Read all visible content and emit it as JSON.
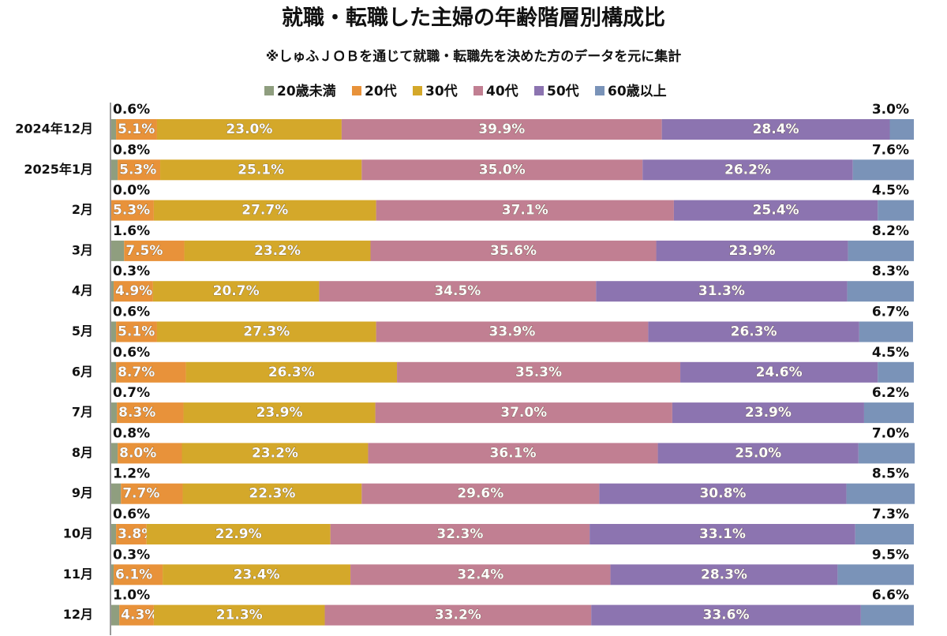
{
  "chart_data": {
    "type": "stacked_barh",
    "title": "就職・転職した主婦の年齢階層別構成比",
    "subtitle": "※しゅふＪＯＢを通じて就職・転職先を決めた方のデータを元に集計",
    "categories": [
      "2024年12月",
      "2025年1月",
      "2月",
      "3月",
      "4月",
      "5月",
      "6月",
      "7月",
      "8月",
      "9月",
      "10月",
      "11月",
      "12月"
    ],
    "xlim": [
      0,
      100
    ],
    "series": [
      {
        "name": "20歳未満",
        "color": "#8f9e7f",
        "values": [
          0.6,
          0.8,
          0.0,
          1.6,
          0.3,
          0.6,
          0.6,
          0.7,
          0.8,
          1.2,
          0.6,
          0.3,
          1.0
        ],
        "value_labels": [
          "0.6%",
          "0.8%",
          "0.0%",
          "1.6%",
          "0.3%",
          "0.6%",
          "0.6%",
          "0.7%",
          "0.8%",
          "1.2%",
          "0.6%",
          "0.3%",
          "1.0%"
        ]
      },
      {
        "name": "20代",
        "color": "#e8923a",
        "values": [
          5.1,
          5.3,
          5.3,
          7.5,
          4.9,
          5.1,
          8.7,
          8.3,
          8.0,
          7.7,
          3.8,
          6.1,
          4.3
        ],
        "value_labels": [
          "5.1%",
          "5.3%",
          "5.3%",
          "7.5%",
          "4.9%",
          "5.1%",
          "8.7%",
          "8.3%",
          "8.0%",
          "7.7%",
          "3.8%",
          "6.1%",
          "4.3%"
        ]
      },
      {
        "name": "30代",
        "color": "#d4a82a",
        "values": [
          23.0,
          25.1,
          27.7,
          23.2,
          20.7,
          27.3,
          26.3,
          23.9,
          23.2,
          22.3,
          22.9,
          23.4,
          21.3
        ],
        "value_labels": [
          "23.0%",
          "25.1%",
          "27.7%",
          "23.2%",
          "20.7%",
          "27.3%",
          "26.3%",
          "23.9%",
          "23.2%",
          "22.3%",
          "22.9%",
          "23.4%",
          "21.3%"
        ]
      },
      {
        "name": "40代",
        "color": "#c17f92",
        "values": [
          39.9,
          35.0,
          37.1,
          35.6,
          34.5,
          33.9,
          35.3,
          37.0,
          36.1,
          29.6,
          32.3,
          32.4,
          33.2
        ],
        "value_labels": [
          "39.9%",
          "35.0%",
          "37.1%",
          "35.6%",
          "34.5%",
          "33.9%",
          "35.3%",
          "37.0%",
          "36.1%",
          "29.6%",
          "32.3%",
          "32.4%",
          "33.2%"
        ]
      },
      {
        "name": "50代",
        "color": "#8c74b0",
        "values": [
          28.4,
          26.2,
          25.4,
          23.9,
          31.3,
          26.3,
          24.6,
          23.9,
          25.0,
          30.8,
          33.1,
          28.3,
          33.6
        ],
        "value_labels": [
          "28.4%",
          "26.2%",
          "25.4%",
          "23.9%",
          "31.3%",
          "26.3%",
          "24.6%",
          "23.9%",
          "25.0%",
          "30.8%",
          "33.1%",
          "28.3%",
          "33.6%"
        ]
      },
      {
        "name": "60歳以上",
        "color": "#7a93b8",
        "values": [
          3.0,
          7.6,
          4.5,
          8.2,
          8.3,
          6.7,
          4.5,
          6.2,
          7.0,
          8.5,
          7.3,
          9.5,
          6.6
        ],
        "value_labels": [
          "3.0%",
          "7.6%",
          "4.5%",
          "8.2%",
          "8.3%",
          "6.7%",
          "4.5%",
          "6.2%",
          "7.0%",
          "8.5%",
          "7.3%",
          "9.5%",
          "6.6%"
        ]
      }
    ]
  }
}
